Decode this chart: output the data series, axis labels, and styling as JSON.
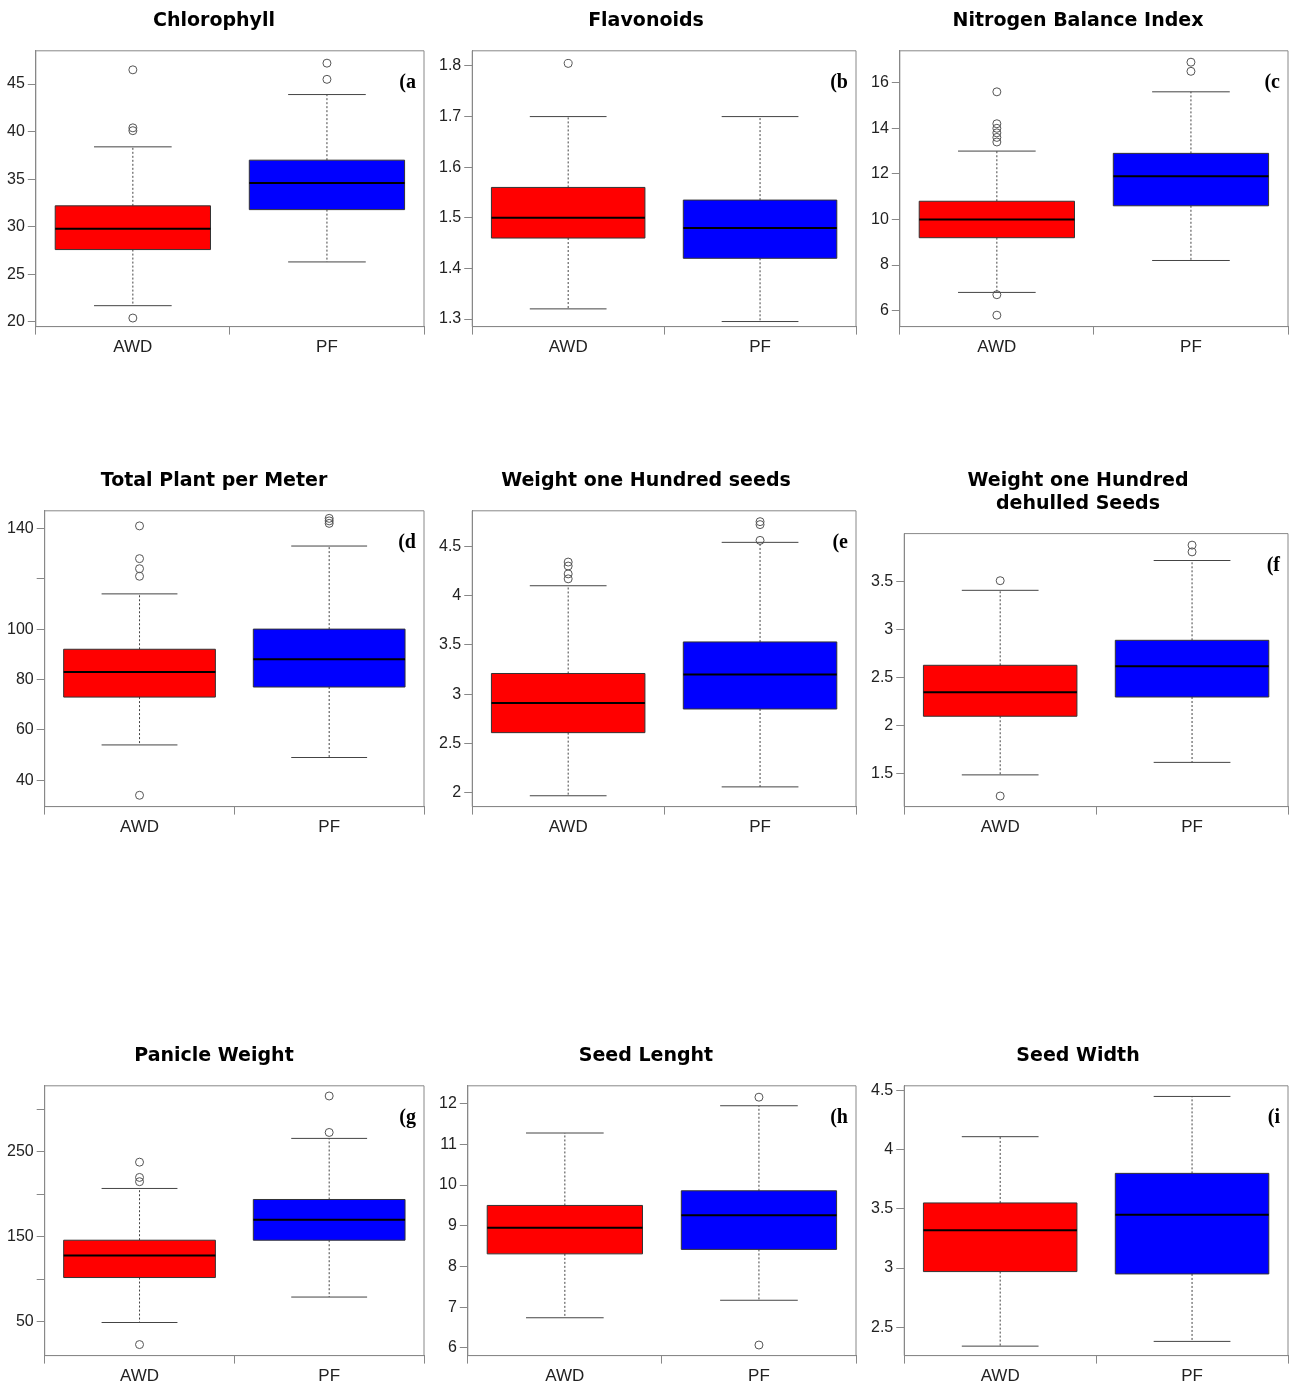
{
  "chart_data": [
    {
      "type": "box",
      "title": "Chlorophyll",
      "categories": [
        "AWD",
        "PF"
      ],
      "colors": [
        "#ff0000",
        "#0000ff"
      ],
      "ylim": [
        19.5,
        48.5
      ],
      "yticks": [
        20,
        25,
        30,
        35,
        40,
        45
      ],
      "annotations": [
        "(a"
      ],
      "boxes": [
        {
          "low": 21.7,
          "q1": 27.6,
          "median": 29.8,
          "q3": 32.2,
          "high": 38.4,
          "outliers": [
            20.4,
            40.1,
            40.4,
            46.5
          ]
        },
        {
          "low": 26.3,
          "q1": 31.8,
          "median": 34.6,
          "q3": 37.0,
          "high": 43.9,
          "outliers": [
            45.5,
            47.2
          ]
        }
      ]
    },
    {
      "type": "box",
      "title": "Flavonoids",
      "categories": [
        "AWD",
        "PF"
      ],
      "colors": [
        "#ff0000",
        "#0000ff"
      ],
      "ylim": [
        1.285,
        1.83
      ],
      "yticks": [
        1.3,
        1.4,
        1.5,
        1.6,
        1.7,
        1.8
      ],
      "annotations": [
        "(b"
      ],
      "boxes": [
        {
          "low": 1.32,
          "q1": 1.46,
          "median": 1.5,
          "q3": 1.56,
          "high": 1.7,
          "outliers": [
            1.805
          ]
        },
        {
          "low": 1.295,
          "q1": 1.42,
          "median": 1.48,
          "q3": 1.535,
          "high": 1.7
        }
      ]
    },
    {
      "type": "box",
      "title": "Nitrogen Balance Index",
      "categories": [
        "AWD",
        "PF"
      ],
      "colors": [
        "#ff0000",
        "#0000ff"
      ],
      "ylim": [
        5.3,
        17.4
      ],
      "yticks": [
        6,
        8,
        10,
        12,
        14,
        16
      ],
      "annotations": [
        "(c"
      ],
      "boxes": [
        {
          "low": 6.8,
          "q1": 9.2,
          "median": 10.0,
          "q3": 10.8,
          "high": 13.0,
          "outliers": [
            5.8,
            6.7,
            13.4,
            13.6,
            13.8,
            14.0,
            14.2,
            15.6
          ]
        },
        {
          "low": 8.2,
          "q1": 10.6,
          "median": 11.9,
          "q3": 12.9,
          "high": 15.6,
          "outliers": [
            16.5,
            16.9
          ]
        }
      ]
    },
    {
      "type": "box",
      "title": "Total Plant per Meter",
      "categories": [
        "AWD",
        "PF"
      ],
      "colors": [
        "#ff0000",
        "#0000ff"
      ],
      "ylim": [
        29.5,
        147
      ],
      "yticks": [
        40,
        60,
        80,
        100,
        {
          "value": 120,
          "label": null
        },
        140
      ],
      "annotations": [
        "(d"
      ],
      "boxes": [
        {
          "low": 54,
          "q1": 73,
          "median": 83,
          "q3": 92,
          "high": 114,
          "outliers": [
            34,
            121,
            124,
            128,
            141
          ]
        },
        {
          "low": 49,
          "q1": 77,
          "median": 88,
          "q3": 100,
          "high": 133,
          "outliers": [
            142,
            143,
            144
          ]
        }
      ]
    },
    {
      "type": "box",
      "title": "Weight one Hundred seeds",
      "categories": [
        "AWD",
        "PF"
      ],
      "colors": [
        "#ff0000",
        "#0000ff"
      ],
      "ylim": [
        1.86,
        4.86
      ],
      "yticks": [
        2.0,
        2.5,
        3.0,
        3.5,
        4.0,
        4.5
      ],
      "annotations": [
        "(e"
      ],
      "boxes": [
        {
          "low": 1.97,
          "q1": 2.61,
          "median": 2.91,
          "q3": 3.21,
          "high": 4.1,
          "outliers": [
            4.17,
            4.22,
            4.3,
            4.34
          ]
        },
        {
          "low": 2.06,
          "q1": 2.85,
          "median": 3.2,
          "q3": 3.53,
          "high": 4.54,
          "outliers": [
            4.56,
            4.72,
            4.75
          ]
        }
      ]
    },
    {
      "type": "box",
      "title": "Weight one Hundred dehulled Seeds",
      "categories": [
        "AWD",
        "PF"
      ],
      "colors": [
        "#ff0000",
        "#0000ff"
      ],
      "ylim": [
        1.16,
        4.0
      ],
      "yticks": [
        1.5,
        2.0,
        2.5,
        3.0,
        3.5
      ],
      "annotations": [
        "(f"
      ],
      "boxes": [
        {
          "low": 1.49,
          "q1": 2.1,
          "median": 2.35,
          "q3": 2.63,
          "high": 3.41,
          "outliers": [
            1.27,
            3.51
          ]
        },
        {
          "low": 1.62,
          "q1": 2.3,
          "median": 2.62,
          "q3": 2.89,
          "high": 3.72,
          "outliers": [
            3.81,
            3.88
          ]
        }
      ]
    },
    {
      "type": "box",
      "title": "Panicle Weight",
      "categories": [
        "AWD",
        "PF"
      ],
      "colors": [
        "#ff0000",
        "#0000ff"
      ],
      "ylim": [
        10,
        328
      ],
      "yticks": [
        50,
        {
          "value": 100,
          "label": null
        },
        150,
        {
          "value": 200,
          "label": null
        },
        250,
        {
          "value": 300,
          "label": null
        }
      ],
      "annotations": [
        "(g"
      ],
      "boxes": [
        {
          "low": 49,
          "q1": 102,
          "median": 128,
          "q3": 146,
          "high": 207,
          "outliers": [
            23,
            215,
            220,
            238
          ]
        },
        {
          "low": 79,
          "q1": 146,
          "median": 170,
          "q3": 194,
          "high": 266,
          "outliers": [
            273,
            316
          ]
        }
      ]
    },
    {
      "type": "box",
      "title": "Seed Lenght",
      "categories": [
        "AWD",
        "PF"
      ],
      "colors": [
        "#ff0000",
        "#0000ff"
      ],
      "ylim": [
        5.81,
        12.44
      ],
      "yticks": [
        6,
        7,
        8,
        9,
        10,
        11,
        12
      ],
      "annotations": [
        "(h"
      ],
      "boxes": [
        {
          "low": 6.74,
          "q1": 8.31,
          "median": 8.95,
          "q3": 9.5,
          "high": 11.28
        },
        {
          "low": 7.17,
          "q1": 8.42,
          "median": 9.26,
          "q3": 9.86,
          "high": 11.95,
          "outliers": [
            6.07,
            12.16
          ]
        }
      ]
    },
    {
      "type": "box",
      "title": "Seed Width",
      "categories": [
        "AWD",
        "PF"
      ],
      "colors": [
        "#ff0000",
        "#0000ff"
      ],
      "ylim": [
        2.26,
        4.54
      ],
      "yticks": [
        2.5,
        3.0,
        3.5,
        4.0,
        4.5
      ],
      "annotations": [
        "(i"
      ],
      "boxes": [
        {
          "low": 2.34,
          "q1": 2.97,
          "median": 3.32,
          "q3": 3.55,
          "high": 4.11
        },
        {
          "low": 2.38,
          "q1": 2.95,
          "median": 3.45,
          "q3": 3.8,
          "high": 4.45
        }
      ]
    }
  ]
}
